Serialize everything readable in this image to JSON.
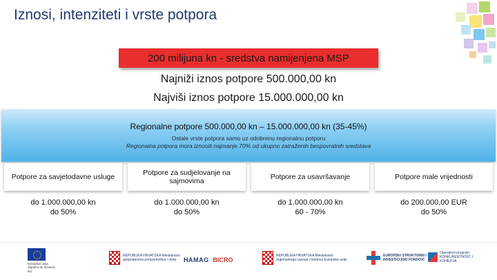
{
  "slide": {
    "title": "Iznosi, intenziteti i vrste potpora",
    "msp_banner": "200 milijuna kn  - sredstva namijenjena MSP",
    "min_amount": "Najniži iznos potpore 500.000,00 kn",
    "max_amount": "Najviši iznos potpore 15.000.000,00 kn"
  },
  "regional": {
    "main": "Regionalne potpore 500.000,00 kn – 15.000.000,00 kn (35-45%)",
    "note1": "Ostale vrste potpora samo uz odobrenu regionalnu potporu",
    "note2": "Regionalna potpora mora iznositi najmanje 70% od ukupno zatraženih bespovratnih sredstava"
  },
  "columns": [
    {
      "header": "Potpore za savjetodavne usluge",
      "value_line1": "do 1.000.000,00 kn",
      "value_line2": "do 50%"
    },
    {
      "header": "Potpore za sudjelovanje na sajmovima",
      "value_line1": "do 1.000.000,00 kn",
      "value_line2": "do 50%"
    },
    {
      "header": "Potpore za usavršavanje",
      "value_line1": "do 1.000.000,00 kn",
      "value_line2": "60 - 70%"
    },
    {
      "header": "Potpore male vrijednosti",
      "value_line1": "do 200.000,00 EUR",
      "value_line2": "do 50%"
    }
  ],
  "footer": {
    "eu_text": "Europska unija Zajedno do fondova EU",
    "ministry1": "REPUBLIKA HRVATSKA Ministarstvo gospodarstva poduzetništva i obrta",
    "hamag": "HAMAG",
    "bicro": "BICRO",
    "ministry2": "REPUBLIKA HRVATSKA Ministarstvo regionalnoga razvoja i fondova Europske unije",
    "funds": "EUROPSKI STRUKTURNI I INVESTICIJSKI FONDOVI",
    "op": "Operativni program KONKURENTNOST I KOHEZIJA"
  },
  "colors": {
    "title": "#1f3a6e",
    "msp_banner": "#ea2d2d",
    "regional_band": "#4fb2e9"
  },
  "icons": [
    "eu-flag-icon",
    "croatian-shield-icon",
    "esif-cross-icon",
    "op-logo-icon"
  ]
}
